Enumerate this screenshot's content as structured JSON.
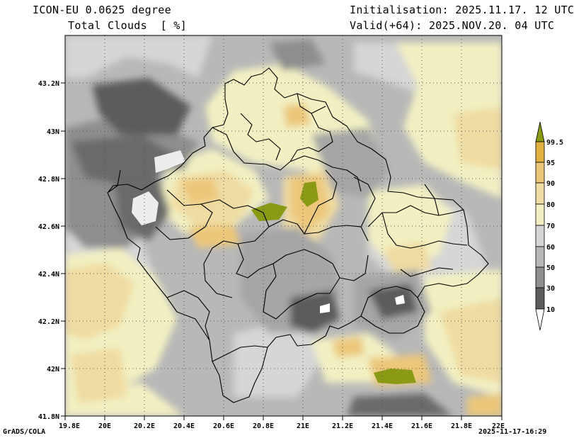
{
  "header": {
    "model": "ICON-EU 0.0625 degree",
    "parameter": "Total Clouds  [ %]",
    "initialisation": "Initialisation: 2025.11.17. 12 UTC",
    "valid": "Valid(+64): 2025.NOV.20. 04 UTC"
  },
  "map": {
    "lat_labels": [
      "43.2N",
      "43N",
      "42.8N",
      "42.6N",
      "42.4N",
      "42.2N",
      "42N",
      "41.8N"
    ],
    "lon_labels": [
      "19.8E",
      "20E",
      "20.2E",
      "20.4E",
      "20.6E",
      "20.8E",
      "21E",
      "21.2E",
      "21.4E",
      "21.6E",
      "21.8E",
      "22E"
    ]
  },
  "legend": {
    "levels": [
      "99.5",
      "95",
      "90",
      "80",
      "70",
      "60",
      "50",
      "30",
      "10"
    ],
    "colors": [
      "#8a9a14",
      "#e2b040",
      "#ecc77a",
      "#efdca2",
      "#f2f0c2",
      "#d6d6d6",
      "#b8b8b8",
      "#8e8e8e",
      "#5c5c5c",
      "#ffffff"
    ]
  },
  "footer": {
    "credit": "GrADS/COLA",
    "timestamp": "2025-11-17-16:29"
  }
}
